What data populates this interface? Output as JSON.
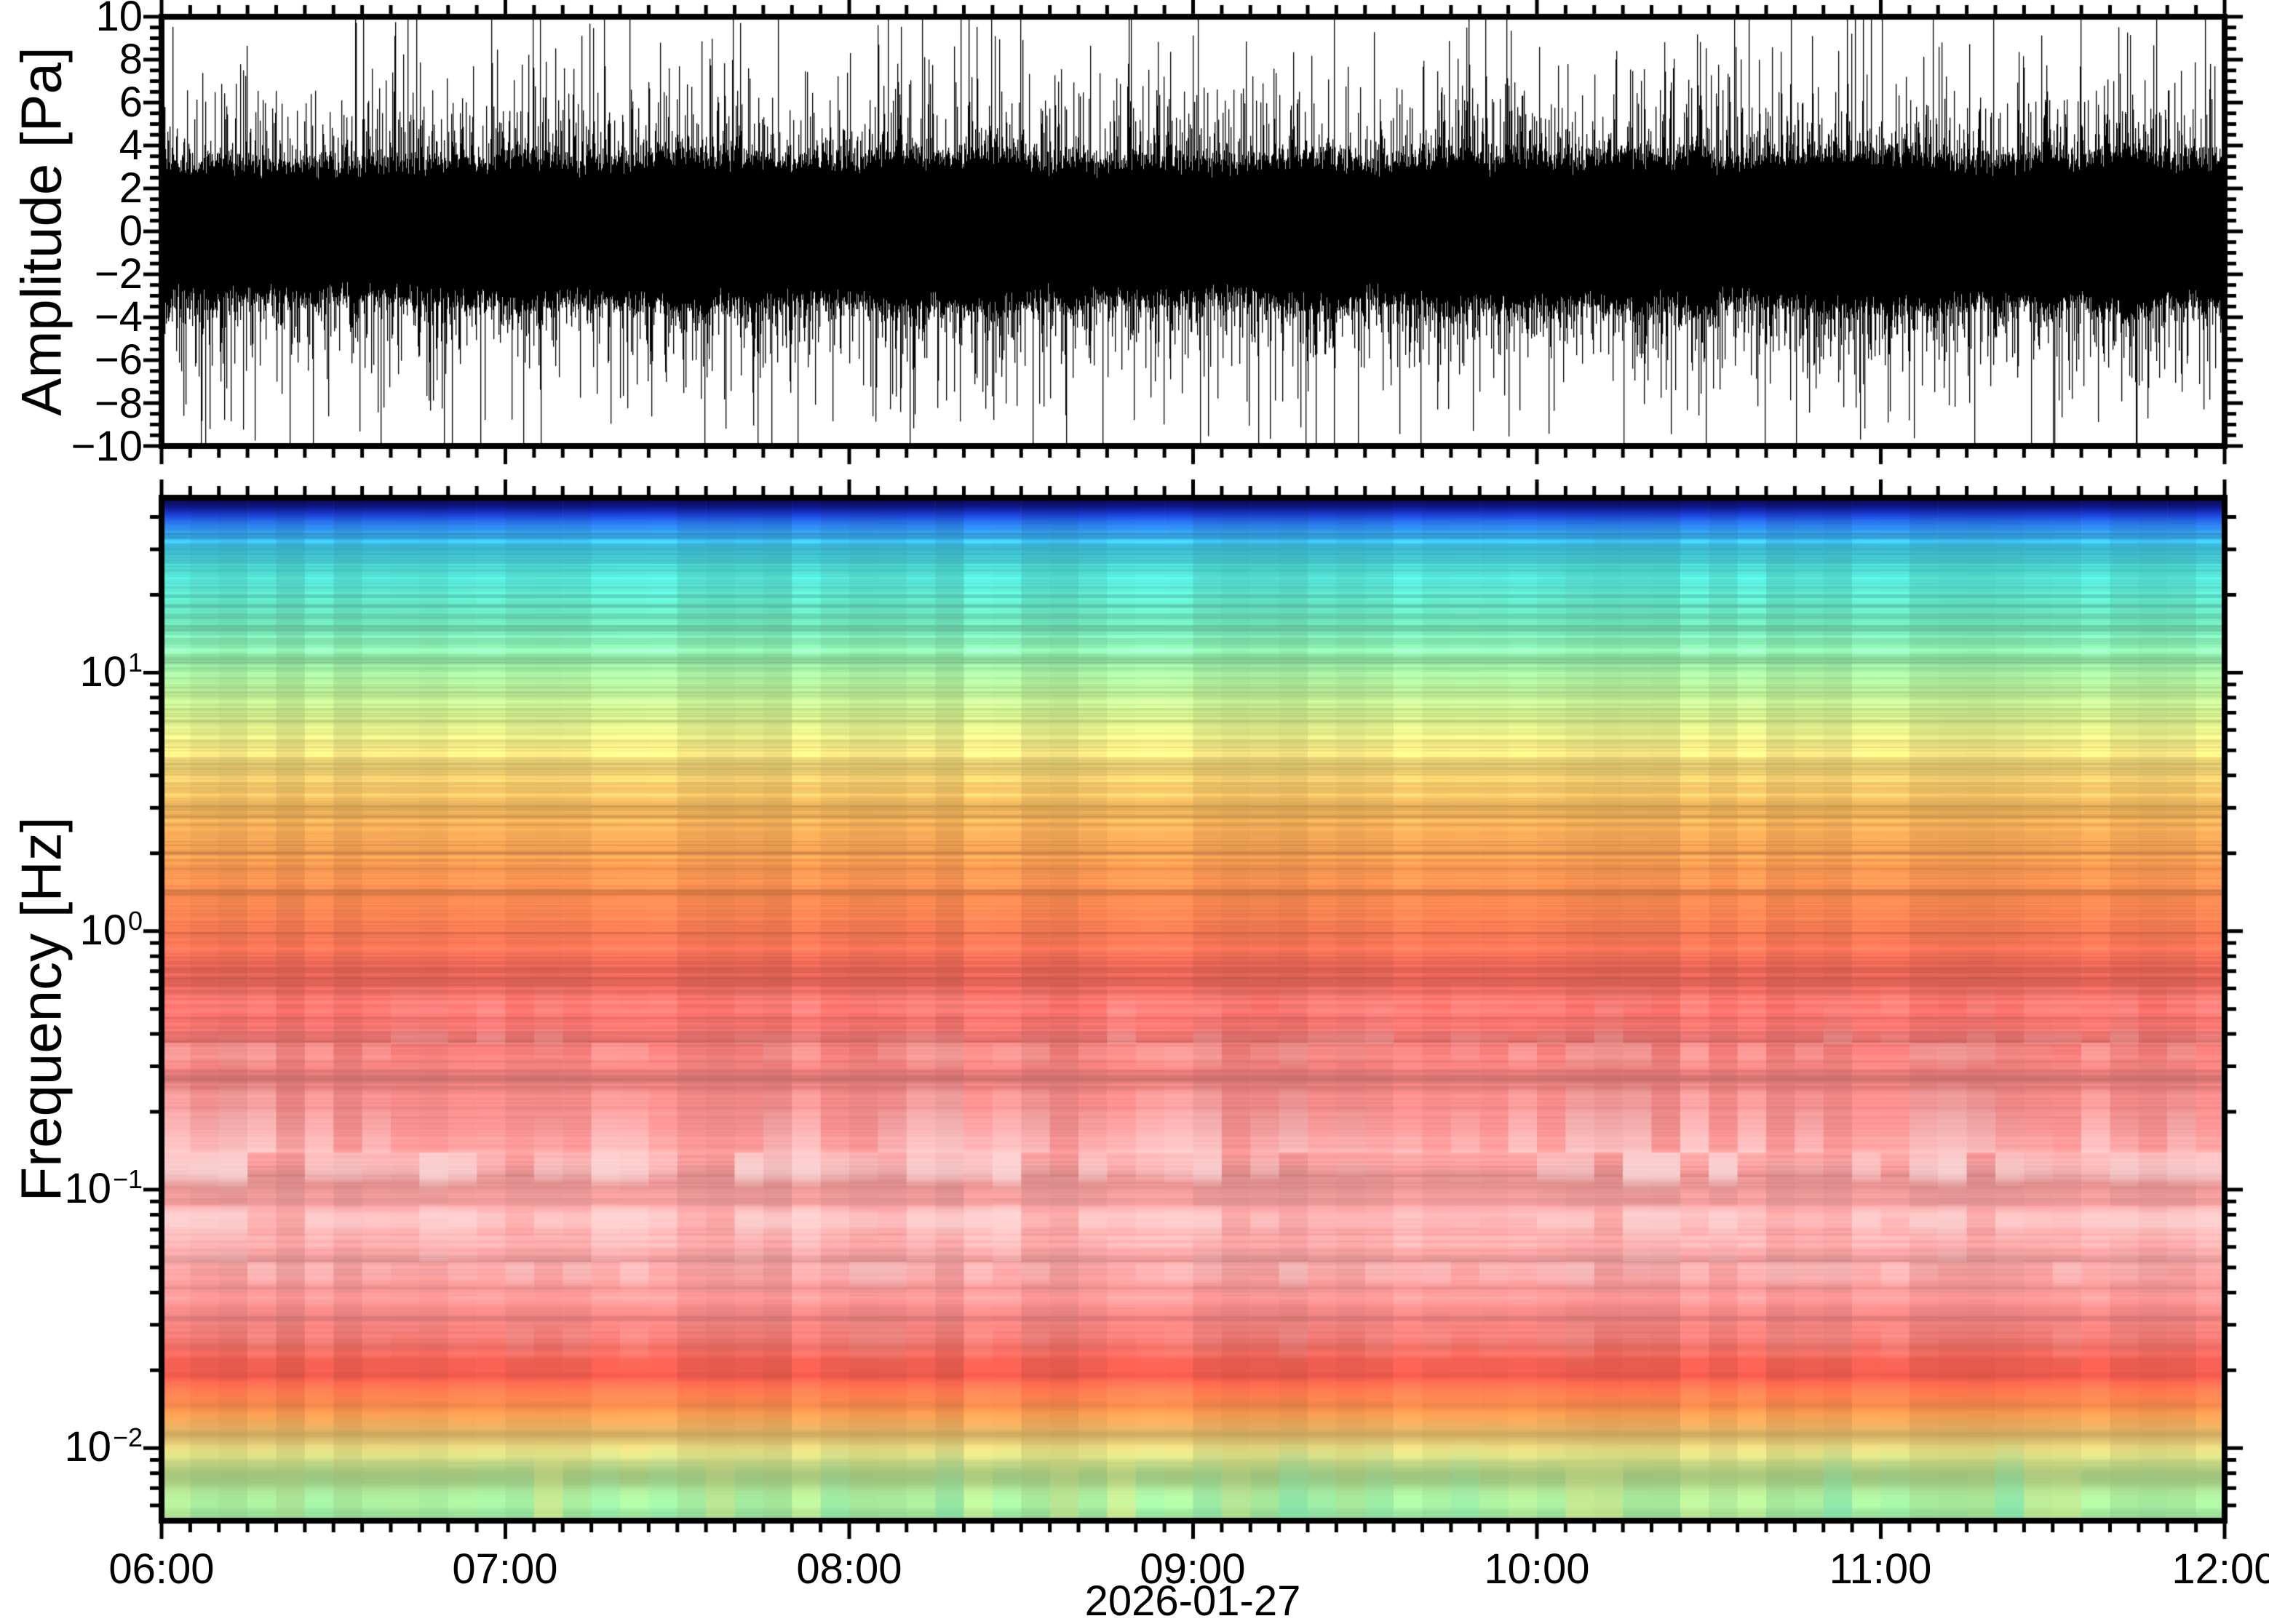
{
  "figure": {
    "background": "#ffffff",
    "frame_color": "#000000",
    "text_color": "#000000"
  },
  "waveform_panel": {
    "ylabel": "Amplitude [Pa]",
    "ytick_labels": [
      "10",
      "8",
      "6",
      "4",
      "2",
      "0",
      "−2",
      "−4",
      "−6",
      "−8",
      "−10"
    ]
  },
  "spectrogram_panel": {
    "ylabel": "Frequency [Hz]",
    "ytick_labels": [
      {
        "mantissa": "10",
        "exponent": "1"
      },
      {
        "mantissa": "10",
        "exponent": "0"
      },
      {
        "mantissa": "10",
        "exponent": "−1"
      },
      {
        "mantissa": "10",
        "exponent": "−2"
      }
    ]
  },
  "time_axis": {
    "tick_labels": [
      "06:00",
      "07:00",
      "08:00",
      "09:00",
      "10:00",
      "11:00",
      "12:00"
    ],
    "date_label": "2026-01-27"
  },
  "chart_data": [
    {
      "type": "line",
      "panel": "top",
      "series_name": "acoustic pressure waveform",
      "ylabel": "Amplitude [Pa]",
      "ylim": [
        -10,
        10
      ],
      "ytick_values": [
        10,
        8,
        6,
        4,
        2,
        0,
        -2,
        -4,
        -6,
        -8,
        -10
      ],
      "y_minor_step": 0.5,
      "x_start": "2026-01-27 06:00",
      "x_end": "2026-01-27 12:00",
      "x_span_minutes": 360,
      "x_major_tick_minutes": 60,
      "x_minor_tick_minutes": 5,
      "xtick_labels": [
        "06:00",
        "07:00",
        "08:00",
        "09:00",
        "10:00",
        "11:00",
        "12:00"
      ],
      "description": "zero-mean continuous broadband noise; solid dense envelope about ±2.5 to ±4.5 Pa with frequent transient spikes reaching the ±10 Pa axis limits",
      "noise_model": {
        "core_min": 2.15,
        "core_var": 1.0,
        "core_jitter": 0.9,
        "spike_probability": 0.6,
        "spike_scale": 1.8,
        "clip": 10.15
      }
    },
    {
      "type": "heatmap",
      "panel": "bottom",
      "series_name": "spectrogram power (relative)",
      "ylabel": "Frequency [Hz]",
      "yscale": "log",
      "ylim": [
        0.00524,
        47.5
      ],
      "ytick_decades": [
        10,
        1,
        0.1,
        0.01
      ],
      "xlabel": "2026-01-27",
      "x_span_minutes": 360,
      "x_major_tick_minutes": 60,
      "x_minor_tick_minutes": 5,
      "time_bin_minutes": 5,
      "colormap": "rainbow: blue/cyan = low power (high frequency), yellow-orange-red = higher power, pink/white = strongest bands (0.03–0.3 Hz), deep red band near 0.02 Hz, green at lowest frequencies",
      "frequency_color_profile": [
        [
          47.5,
          "#0a0a46"
        ],
        [
          44,
          "#101688"
        ],
        [
          41,
          "#1b3fd0"
        ],
        [
          38,
          "#2b77ec"
        ],
        [
          34,
          "#38abea"
        ],
        [
          30,
          "#41c8e0"
        ],
        [
          26,
          "#4cd6d2"
        ],
        [
          20,
          "#5cdec6"
        ],
        [
          15,
          "#74e4b8"
        ],
        [
          11.5,
          "#92e9a8"
        ],
        [
          9,
          "#b2ec9b"
        ],
        [
          6.8,
          "#d2ec8c"
        ],
        [
          5,
          "#ebdd7e"
        ],
        [
          3.8,
          "#f3cb6d"
        ],
        [
          2.8,
          "#f6b55c"
        ],
        [
          2,
          "#f6a054"
        ],
        [
          1.4,
          "#f58a50"
        ],
        [
          1,
          "#f37852"
        ],
        [
          0.72,
          "#f16a5a"
        ],
        [
          0.5,
          "#f16c66"
        ],
        [
          0.33,
          "#f37f7c"
        ],
        [
          0.2,
          "#f58e8e"
        ],
        [
          0.12,
          "#f79a9a"
        ],
        [
          0.08,
          "#f8a4a4"
        ],
        [
          0.05,
          "#f6a0a0"
        ],
        [
          0.035,
          "#f48c8c"
        ],
        [
          0.027,
          "#f07a74"
        ],
        [
          0.022,
          "#ec5f52"
        ],
        [
          0.019,
          "#ec5a4c"
        ],
        [
          0.016,
          "#f0764a"
        ],
        [
          0.0135,
          "#f29a50"
        ],
        [
          0.0115,
          "#f0c26e"
        ],
        [
          0.0095,
          "#e3e388"
        ],
        [
          0.008,
          "#c6ee96"
        ],
        [
          0.0065,
          "#aef0a0"
        ],
        [
          0.00524,
          "#a5f0a4"
        ]
      ],
      "texture": {
        "row_stripe_strength": 0.3,
        "column_strength": 0.12,
        "whiten_center_hz": 0.112,
        "whiten_halfwidth_decades": 0.75,
        "whiten_max": 0.85
      }
    }
  ]
}
